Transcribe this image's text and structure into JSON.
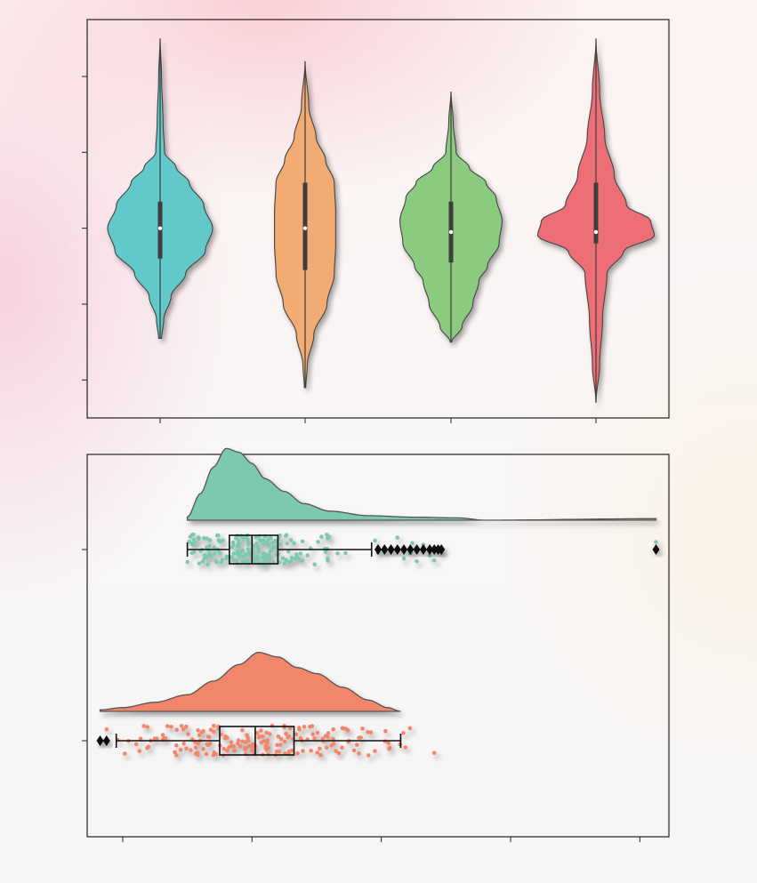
{
  "chart_data": [
    {
      "type": "violin",
      "orientation": "vertical",
      "series": [
        {
          "color": "#62C9CA",
          "median": 0.0,
          "q1": -0.4,
          "q3": 0.35,
          "min": -1.45,
          "max": 2.5,
          "density": [
            [
              -1.45,
              0.02
            ],
            [
              -1.2,
              0.05
            ],
            [
              -0.9,
              0.15
            ],
            [
              -0.6,
              0.35
            ],
            [
              -0.3,
              0.62
            ],
            [
              0.0,
              0.72
            ],
            [
              0.3,
              0.6
            ],
            [
              0.6,
              0.4
            ],
            [
              0.8,
              0.22
            ],
            [
              1.0,
              0.06
            ],
            [
              1.4,
              0.04
            ],
            [
              2.0,
              0.02
            ],
            [
              2.5,
              0.0
            ]
          ]
        },
        {
          "color": "#F2AC73",
          "median": 0.0,
          "q1": -0.55,
          "q3": 0.6,
          "min": -2.1,
          "max": 2.2,
          "density": [
            [
              -2.1,
              0.01
            ],
            [
              -1.8,
              0.03
            ],
            [
              -1.4,
              0.12
            ],
            [
              -1.0,
              0.3
            ],
            [
              -0.6,
              0.4
            ],
            [
              -0.2,
              0.42
            ],
            [
              0.2,
              0.42
            ],
            [
              0.6,
              0.4
            ],
            [
              0.9,
              0.28
            ],
            [
              1.2,
              0.15
            ],
            [
              1.6,
              0.05
            ],
            [
              2.2,
              0.0
            ]
          ]
        },
        {
          "color": "#8BCB80",
          "median": -0.05,
          "q1": -0.45,
          "q3": 0.35,
          "min": -1.5,
          "max": 1.8,
          "density": [
            [
              -1.5,
              0.01
            ],
            [
              -1.3,
              0.15
            ],
            [
              -1.0,
              0.3
            ],
            [
              -0.7,
              0.38
            ],
            [
              -0.5,
              0.5
            ],
            [
              -0.2,
              0.66
            ],
            [
              0.1,
              0.7
            ],
            [
              0.4,
              0.62
            ],
            [
              0.6,
              0.48
            ],
            [
              0.8,
              0.25
            ],
            [
              1.0,
              0.07
            ],
            [
              1.4,
              0.03
            ],
            [
              1.8,
              0.0
            ]
          ]
        },
        {
          "color": "#EE6E76",
          "median": -0.05,
          "q1": -0.2,
          "q3": 0.6,
          "min": -2.3,
          "max": 2.5,
          "density": [
            [
              -2.3,
              0.0
            ],
            [
              -1.8,
              0.05
            ],
            [
              -1.2,
              0.09
            ],
            [
              -0.6,
              0.15
            ],
            [
              -0.3,
              0.38
            ],
            [
              -0.1,
              0.8
            ],
            [
              0.1,
              0.75
            ],
            [
              0.3,
              0.42
            ],
            [
              0.7,
              0.25
            ],
            [
              1.2,
              0.12
            ],
            [
              1.8,
              0.05
            ],
            [
              2.5,
              0.0
            ]
          ]
        }
      ],
      "ylim": [
        -2.5,
        2.75
      ],
      "yticks": [
        -2,
        -1,
        0,
        1,
        2
      ],
      "grid": false,
      "legend": "none"
    },
    {
      "type": "raincloud",
      "orientation": "horizontal",
      "series": [
        {
          "color": "#7DC9B0",
          "min": -2.0,
          "q1": -1.35,
          "median": -1.0,
          "q3": -0.6,
          "max": 0.85,
          "outliers": [
            0.95,
            1.05,
            1.15,
            1.25,
            1.35,
            1.45,
            1.55,
            1.65,
            1.75,
            1.82,
            1.88,
            1.93,
            5.25
          ],
          "density": [
            [
              -2.0,
              0.04
            ],
            [
              -1.8,
              0.35
            ],
            [
              -1.6,
              0.7
            ],
            [
              -1.4,
              0.95
            ],
            [
              -1.2,
              0.9
            ],
            [
              -1.0,
              0.75
            ],
            [
              -0.8,
              0.55
            ],
            [
              -0.5,
              0.38
            ],
            [
              -0.2,
              0.22
            ],
            [
              0.2,
              0.12
            ],
            [
              0.8,
              0.06
            ],
            [
              1.5,
              0.04
            ],
            [
              2.2,
              0.03
            ],
            [
              2.6,
              0.0
            ],
            [
              5.25,
              0.02
            ]
          ]
        },
        {
          "color": "#F2866A",
          "min": -3.1,
          "q1": -1.5,
          "median": -0.95,
          "q3": -0.35,
          "max": 1.3,
          "outliers": [
            -3.35,
            -3.25
          ],
          "density": [
            [
              -3.35,
              0.02
            ],
            [
              -3.0,
              0.05
            ],
            [
              -2.5,
              0.12
            ],
            [
              -2.0,
              0.22
            ],
            [
              -1.6,
              0.4
            ],
            [
              -1.2,
              0.62
            ],
            [
              -0.9,
              0.78
            ],
            [
              -0.6,
              0.72
            ],
            [
              -0.3,
              0.58
            ],
            [
              0.0,
              0.5
            ],
            [
              0.4,
              0.32
            ],
            [
              0.8,
              0.15
            ],
            [
              1.1,
              0.05
            ],
            [
              1.3,
              0.0
            ]
          ]
        }
      ],
      "xlim": [
        -3.55,
        5.45
      ],
      "xticks": [
        -3,
        -1,
        1,
        3,
        5
      ],
      "grid": false,
      "legend": "none"
    }
  ]
}
